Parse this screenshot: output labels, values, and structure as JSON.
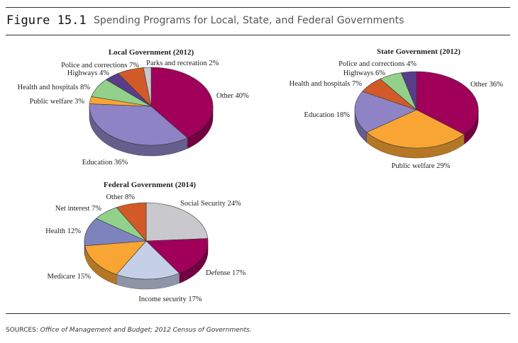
{
  "figure": {
    "number": "Figure 15.1",
    "title": "Spending Programs for Local, State, and Federal Governments"
  },
  "sources": {
    "label": "SOURCES:",
    "text": "Office of Management and Budget; 2012 Census of Governments."
  },
  "chart_data": [
    {
      "type": "pie",
      "title": "Local Government (2012)",
      "labels": [
        "Other 40%",
        "Education 36%",
        "Public welfare 3%",
        "Health and hospitals 8%",
        "Highways 4%",
        "Police and corrections 7%",
        "Parks and recreation 2%"
      ],
      "values": [
        40,
        36,
        3,
        8,
        4,
        7,
        2
      ],
      "colors": [
        "#a0005a",
        "#8e83c4",
        "#f9a534",
        "#93d18b",
        "#5a3d8a",
        "#d25a28",
        "#c9c9cd"
      ]
    },
    {
      "type": "pie",
      "title": "State Government (2012)",
      "labels": [
        "Other 36%",
        "Public welfare 29%",
        "Education 18%",
        "Health and hospitals 7%",
        "Highways 6%",
        "Police and corrections 4%"
      ],
      "values": [
        36,
        29,
        18,
        7,
        6,
        4
      ],
      "colors": [
        "#a0005a",
        "#f9a534",
        "#8e83c4",
        "#d25a28",
        "#93d18b",
        "#5a3d8a"
      ]
    },
    {
      "type": "pie",
      "title": "Federal Government (2014)",
      "labels": [
        "Social Security 24%",
        "Defense 17%",
        "Income security 17%",
        "Medicare 15%",
        "Health 12%",
        "Net interest 7%",
        "Other 8%"
      ],
      "values": [
        24,
        17,
        17,
        15,
        12,
        7,
        8
      ],
      "colors": [
        "#c9c9cd",
        "#a0005a",
        "#c5cfe8",
        "#f9a534",
        "#7d84bd",
        "#93d18b",
        "#d25a28"
      ]
    }
  ]
}
